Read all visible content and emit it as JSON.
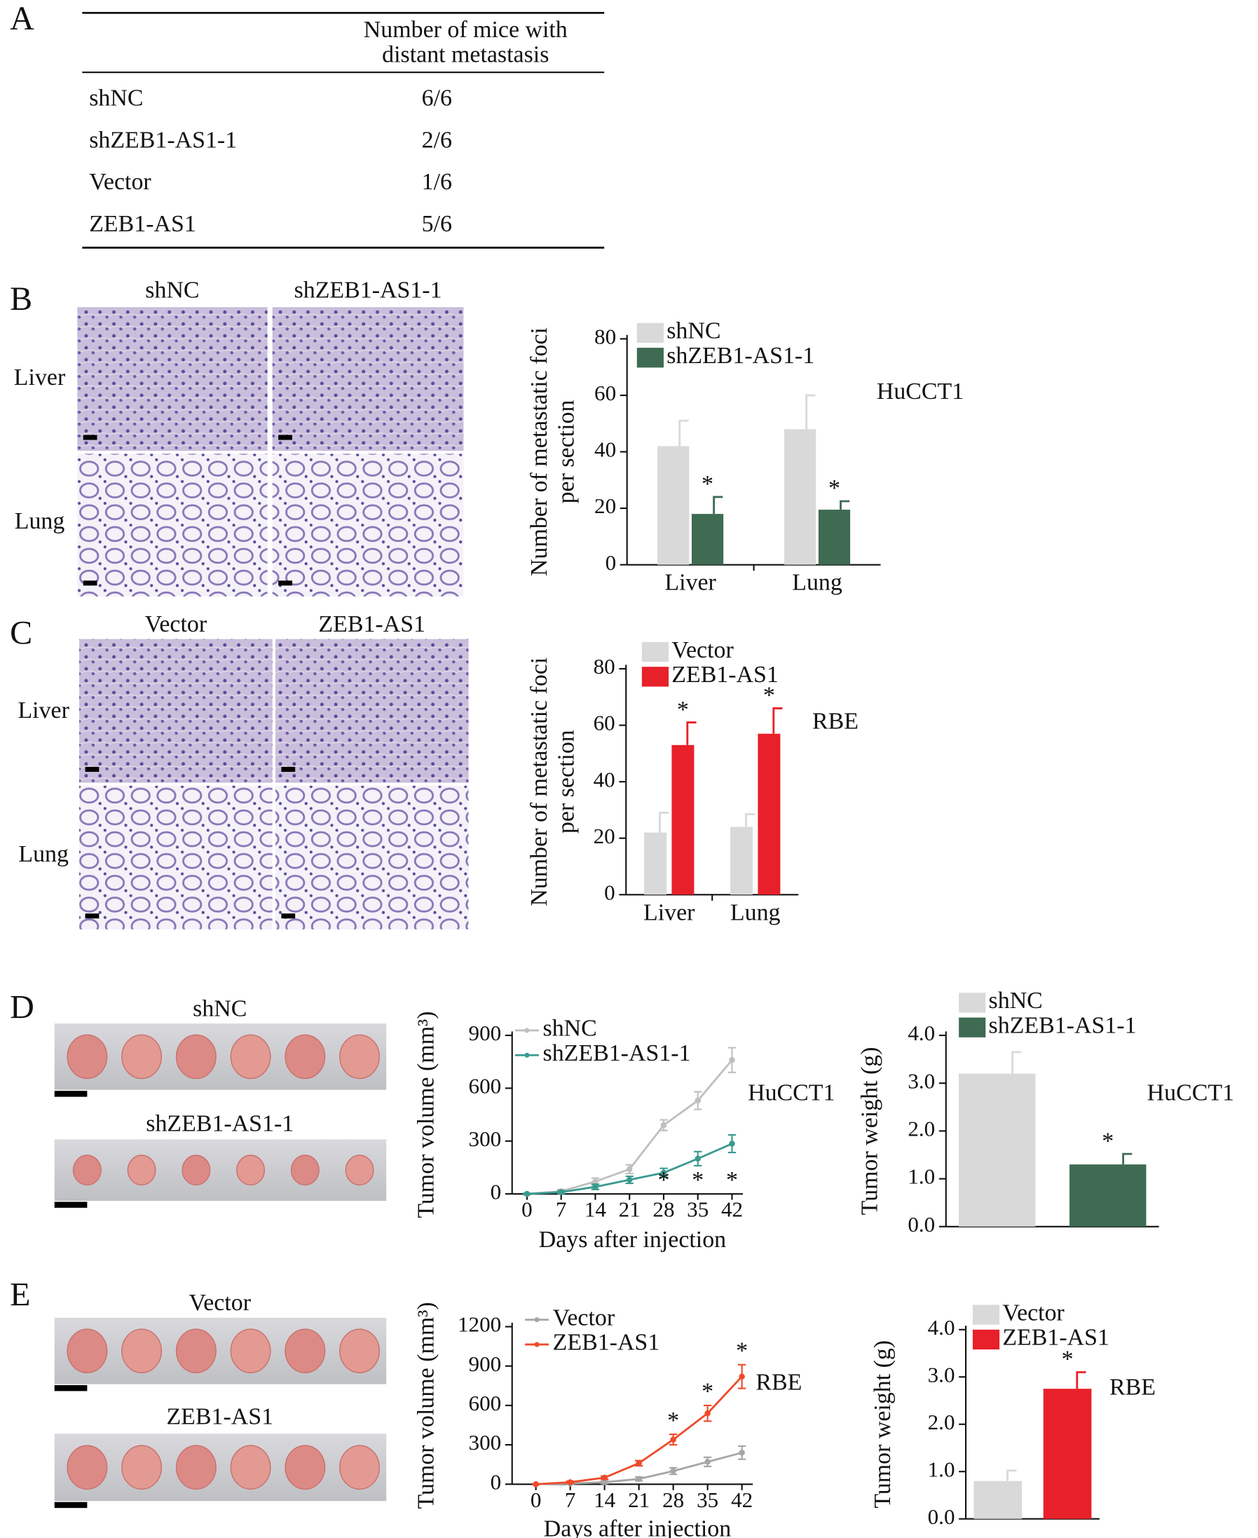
{
  "panel_labels": [
    "A",
    "B",
    "C",
    "D",
    "E"
  ],
  "table": {
    "header": [
      "Number of mice with",
      "distant metastasis"
    ],
    "rows": [
      [
        "shNC",
        "6/6"
      ],
      [
        "shZEB1-AS1-1",
        "2/6"
      ],
      [
        "Vector",
        "1/6"
      ],
      [
        "ZEB1-AS1",
        "5/6"
      ]
    ]
  },
  "histology": [
    {
      "columns": [
        "shNC",
        "shZEB1-AS1-1"
      ],
      "rows": [
        "Liver",
        "Lung"
      ]
    },
    {
      "columns": [
        "Vector",
        "ZEB1-AS1"
      ],
      "rows": [
        "Liver",
        "Lung"
      ]
    }
  ],
  "tumor_photos": [
    [
      "shNC",
      "shZEB1-AS1-1"
    ],
    [
      "Vector",
      "ZEB1-AS1"
    ]
  ],
  "chart_data": [
    {
      "type": "bar",
      "ylabel": [
        "Number of  metastatic foci",
        "per section"
      ],
      "annotation": "HuCCT1",
      "legend": "top-left",
      "categories": [
        "Liver",
        "Lung"
      ],
      "series": [
        {
          "name": "shNC",
          "color": "#d9d9d9",
          "values": [
            42,
            48
          ],
          "errors": [
            9,
            12
          ],
          "significance": [
            null,
            null
          ]
        },
        {
          "name": "shZEB1-AS1-1",
          "color": "#3e6b52",
          "values": [
            18,
            19.5
          ],
          "errors": [
            6,
            3
          ],
          "significance": [
            "*",
            "*"
          ]
        }
      ],
      "ylim": [
        0,
        80
      ],
      "yticks": [
        0,
        20,
        40,
        60,
        80
      ]
    },
    {
      "type": "bar",
      "ylabel": [
        "Number of  metastatic foci",
        "per section"
      ],
      "annotation": "RBE",
      "legend": "top-left",
      "categories": [
        "Liver",
        "Lung"
      ],
      "series": [
        {
          "name": "Vector",
          "color": "#d9d9d9",
          "values": [
            22,
            24
          ],
          "errors": [
            7,
            4.5
          ],
          "significance": [
            null,
            null
          ]
        },
        {
          "name": "ZEB1-AS1",
          "color": "#e8202a",
          "values": [
            53,
            57
          ],
          "errors": [
            8,
            9
          ],
          "significance": [
            "*",
            "*"
          ]
        }
      ],
      "ylim": [
        0,
        80
      ],
      "yticks": [
        0,
        20,
        40,
        60,
        80
      ]
    },
    {
      "type": "line",
      "ylabel": [
        "Tumor volume (mm³)"
      ],
      "xlabel": "Days after injection",
      "annotation": "HuCCT1",
      "legend": "top-left",
      "x": [
        0,
        7,
        14,
        21,
        28,
        35,
        42
      ],
      "xlim": [
        0,
        42
      ],
      "xticks": [
        0,
        7,
        14,
        21,
        28,
        35,
        42
      ],
      "series": [
        {
          "name": "shNC",
          "color": "#bfbfbf",
          "values": [
            0,
            15,
            70,
            140,
            390,
            530,
            760
          ],
          "errors": [
            5,
            10,
            20,
            25,
            30,
            50,
            70
          ],
          "significance": [
            null,
            null,
            null,
            null,
            null,
            null,
            null
          ]
        },
        {
          "name": "shZEB1-AS1-1",
          "color": "#3a9a8f",
          "values": [
            0,
            10,
            40,
            80,
            120,
            200,
            285
          ],
          "errors": [
            3,
            8,
            15,
            20,
            25,
            40,
            50
          ],
          "significance": [
            null,
            null,
            null,
            null,
            "*",
            "*",
            "*"
          ]
        }
      ],
      "ylim": [
        0,
        900
      ],
      "yticks": [
        0,
        300,
        600,
        900
      ]
    },
    {
      "type": "bar",
      "ylabel": [
        "Tumor weight (g)"
      ],
      "annotation": "HuCCT1",
      "legend": "top-left",
      "categories": [
        null
      ],
      "series": [
        {
          "name": "shNC",
          "color": "#d9d9d9",
          "values": [
            3.2
          ],
          "errors": [
            0.45
          ],
          "significance": [
            null
          ]
        },
        {
          "name": "shZEB1-AS1-1",
          "color": "#3e6b52",
          "values": [
            1.3
          ],
          "errors": [
            0.22
          ],
          "significance": [
            "*"
          ]
        }
      ],
      "ylim": [
        0,
        4
      ],
      "yticks": [
        {
          "value": 0,
          "label": "0.0"
        },
        {
          "value": 1,
          "label": "1.0"
        },
        {
          "value": 2,
          "label": "2.0"
        },
        {
          "value": 3,
          "label": "3.0"
        },
        {
          "value": 4,
          "label": "4.0"
        }
      ]
    },
    {
      "type": "line",
      "ylabel": [
        "Tumor volume (mm³)"
      ],
      "xlabel": "Days after injection",
      "annotation": "RBE",
      "legend": "top-left",
      "x": [
        0,
        7,
        14,
        21,
        28,
        35,
        42
      ],
      "xlim": [
        0,
        42
      ],
      "xticks": [
        0,
        7,
        14,
        21,
        28,
        35,
        42
      ],
      "series": [
        {
          "name": "Vector",
          "color": "#a6a6a6",
          "values": [
            0,
            5,
            15,
            40,
            100,
            170,
            240
          ],
          "errors": [
            3,
            5,
            10,
            15,
            25,
            35,
            50
          ],
          "significance": [
            null,
            null,
            null,
            null,
            null,
            null,
            null
          ]
        },
        {
          "name": "ZEB1-AS1",
          "color": "#ee4b2b",
          "values": [
            0,
            15,
            50,
            160,
            340,
            540,
            820
          ],
          "errors": [
            3,
            8,
            12,
            20,
            40,
            60,
            90
          ],
          "significance": [
            null,
            null,
            null,
            null,
            "*",
            "*",
            "*"
          ]
        }
      ],
      "ylim": [
        0,
        1200
      ],
      "yticks": [
        0,
        300,
        600,
        900,
        1200
      ]
    },
    {
      "type": "bar",
      "ylabel": [
        "Tumor weight (g)"
      ],
      "annotation": "RBE",
      "legend": "top-left",
      "categories": [
        null
      ],
      "series": [
        {
          "name": "Vector",
          "color": "#d9d9d9",
          "values": [
            0.8
          ],
          "errors": [
            0.22
          ],
          "significance": [
            null
          ]
        },
        {
          "name": "ZEB1-AS1",
          "color": "#e8202a",
          "values": [
            2.75
          ],
          "errors": [
            0.35
          ],
          "significance": [
            "*"
          ]
        }
      ],
      "ylim": [
        0,
        4
      ],
      "yticks": [
        {
          "value": 0,
          "label": "0.0"
        },
        {
          "value": 1,
          "label": "1.0"
        },
        {
          "value": 2,
          "label": "2.0"
        },
        {
          "value": 3,
          "label": "3.0"
        },
        {
          "value": 4,
          "label": "4.0"
        }
      ]
    }
  ]
}
